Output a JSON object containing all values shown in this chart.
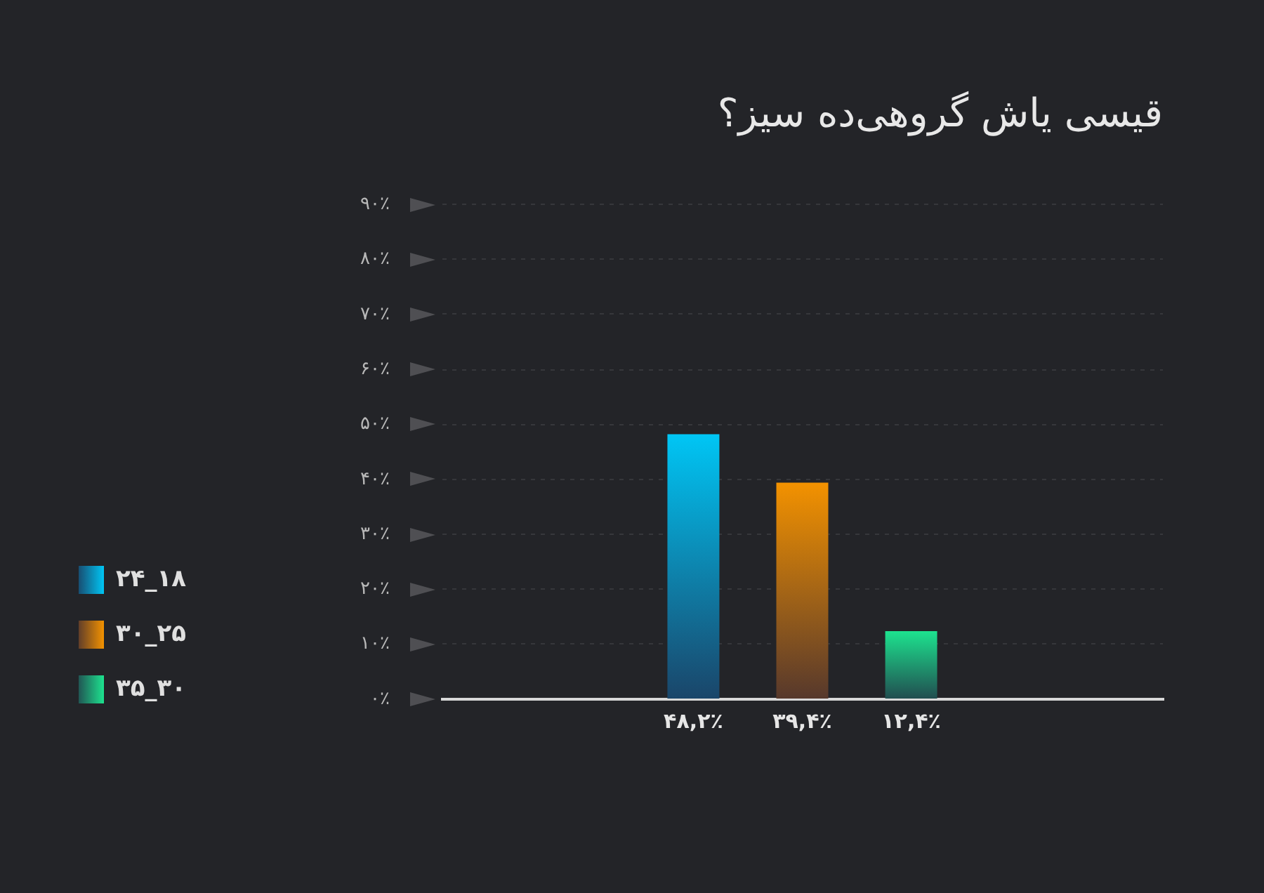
{
  "chart_data": {
    "type": "bar",
    "title": "قیسی یاش گروهی‌ده سیز؟",
    "categories": [
      null
    ],
    "series": [
      {
        "name": "۱۸_۲۴",
        "color": "#00c6f5",
        "values": [
          48.2
        ],
        "value_labels": [
          "۴۸,۲٪"
        ]
      },
      {
        "name": "۲۵_۳۰",
        "color": "#f39200",
        "values": [
          39.4
        ],
        "value_labels": [
          "۳۹,۴٪"
        ]
      },
      {
        "name": "۳۰_۳۵",
        "color": "#1de38f",
        "values": [
          12.4
        ],
        "value_labels": [
          "۱۲,۴٪"
        ]
      }
    ],
    "ylim": [
      0,
      90
    ],
    "yticks": [
      {
        "value": 0,
        "label": "۰٪"
      },
      {
        "value": 10,
        "label": "۱۰٪"
      },
      {
        "value": 20,
        "label": "۲۰٪"
      },
      {
        "value": 30,
        "label": "۳۰٪"
      },
      {
        "value": 40,
        "label": "۴۰٪"
      },
      {
        "value": 50,
        "label": "۵۰٪"
      },
      {
        "value": 60,
        "label": "۶۰٪"
      },
      {
        "value": 70,
        "label": "۷۰٪"
      },
      {
        "value": 80,
        "label": "۸۰٪"
      },
      {
        "value": 90,
        "label": "۹۰٪"
      }
    ],
    "grid": "y",
    "legend": "left",
    "tick_labels": "y"
  }
}
